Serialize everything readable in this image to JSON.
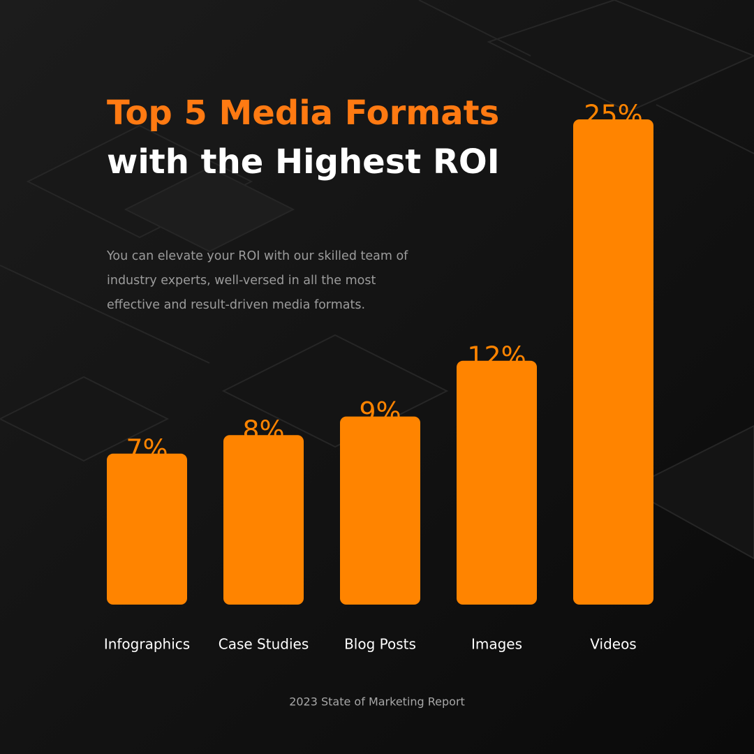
{
  "chart_data": {
    "type": "bar",
    "title": "Top 5 Media Formats",
    "subtitle": "with the Highest ROI",
    "description": "You can elevate your ROI with our skilled team of industry experts, well-versed in all the most effective and result-driven media formats.",
    "footer": "2023 State of Marketing Report",
    "categories": [
      "Infographics",
      "Case Studies",
      "Blog Posts",
      "Images",
      "Videos"
    ],
    "values": [
      7,
      8,
      9,
      12,
      25
    ],
    "value_labels": [
      "7%",
      "8%",
      "9%",
      "12%",
      "25%"
    ],
    "color": "#ff8400"
  }
}
